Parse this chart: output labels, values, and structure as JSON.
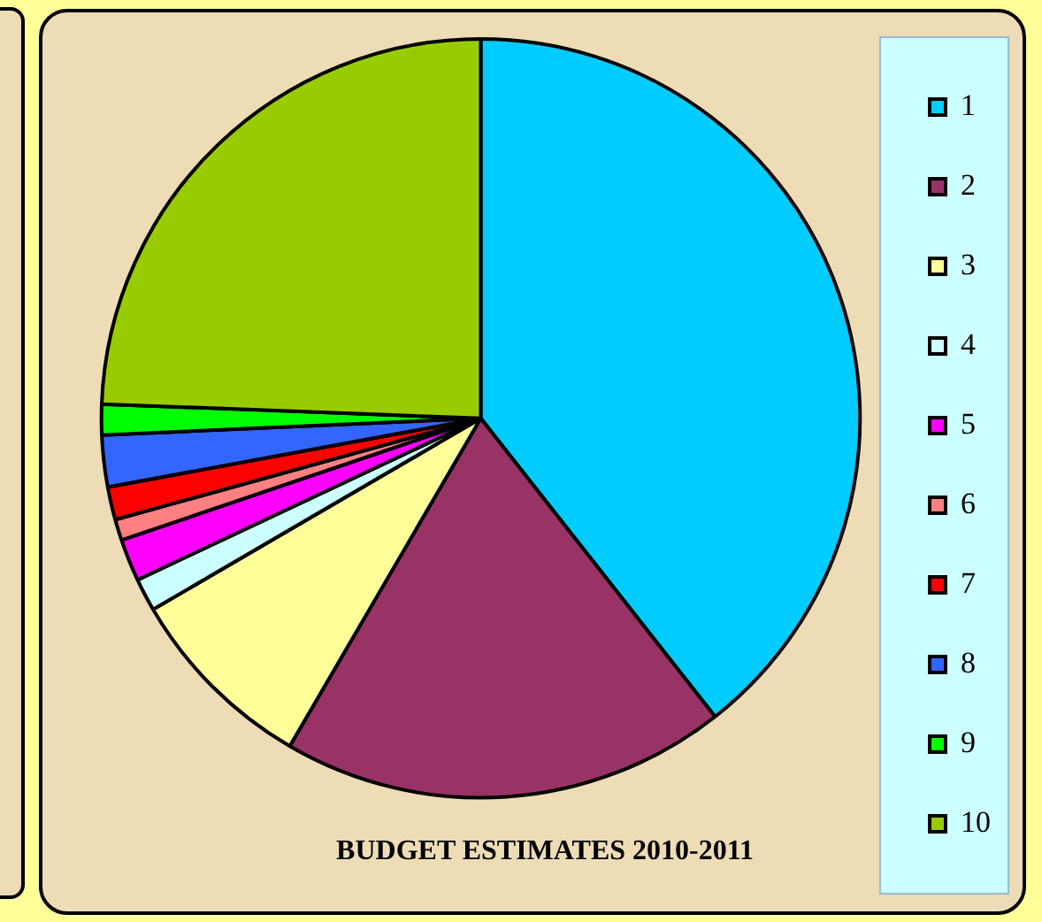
{
  "chart_data": {
    "type": "pie",
    "title": "BUDGET ESTIMATES 2010-2011",
    "categories": [
      "1",
      "2",
      "3",
      "4",
      "5",
      "6",
      "7",
      "8",
      "9",
      "10"
    ],
    "values": [
      39.4,
      19,
      8.2,
      1.4,
      1.8,
      0.9,
      1.4,
      2.2,
      1.3,
      24.4
    ],
    "colors": [
      "#00ccff",
      "#993366",
      "#ffff99",
      "#ccffff",
      "#ff00ff",
      "#ff8080",
      "#ff0000",
      "#3366ff",
      "#00ff00",
      "#99cc00"
    ],
    "legend": "right"
  }
}
